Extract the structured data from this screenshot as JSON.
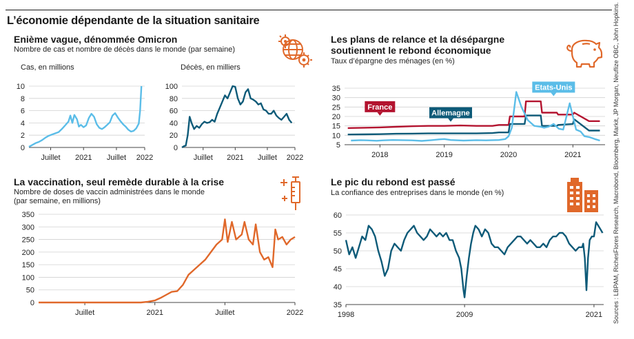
{
  "headline": "L’économie dépendante de la situation sanitaire",
  "sources": "Sources : LBPAM, RichesFlores Research, Macrobond, Bloomberg, Markit, JP Morgan, Neuflize OBC, John Hopkins.",
  "colors": {
    "light_blue": "#5bbde8",
    "dark_blue": "#0d5a78",
    "crimson": "#b3132f",
    "orange": "#e0682a",
    "grid": "#d0d0d0"
  },
  "icons": [
    "globe-virus-icon",
    "piggy-bank-icon",
    "vaccine-syringe-icon",
    "buildings-icon"
  ],
  "panels": {
    "omicron": {
      "title": "Enième vague, dénommée Omicron",
      "subtitle": "Nombre de cas et nombre de décès dans le monde (par semaine)"
    },
    "savings": {
      "title_line1": "Les plans de relance et la désépargne",
      "title_line2": "soutiennent le rebond économique",
      "subtitle": "Taux d’épargne des ménages (en %)"
    },
    "vaccination": {
      "title": "La vaccination, seul remède durable à la crise",
      "subtitle_line1": "Nombre de doses de vaccin administrées dans le monde",
      "subtitle_line2": "(par semaine, en millions)"
    },
    "confidence": {
      "title": "Le pic du rebond est passé",
      "subtitle": "La confiance des entreprises dans le monde (en %)"
    }
  },
  "chart_data": [
    {
      "id": "cases",
      "type": "line",
      "title": "Enième vague, dénommée Omicron",
      "ylabel": "Cas, en millions",
      "ylim": [
        0,
        10
      ],
      "yticks": [
        "0",
        "2",
        "4",
        "6",
        "8",
        "10"
      ],
      "xlim": [
        2020.17,
        2021.93
      ],
      "xticks": [
        {
          "x": 2020.5,
          "label": "Juillet"
        },
        {
          "x": 2021.0,
          "label": "2021"
        },
        {
          "x": 2021.5,
          "label": "Juillet"
        },
        {
          "x": 2021.93,
          "label": "2022"
        }
      ],
      "grid": true,
      "series": [
        {
          "color": "#5bbde8",
          "x": [
            2020.17,
            2020.22,
            2020.27,
            2020.32,
            2020.37,
            2020.42,
            2020.47,
            2020.52,
            2020.57,
            2020.62,
            2020.67,
            2020.72,
            2020.77,
            2020.8,
            2020.83,
            2020.86,
            2020.9,
            2020.93,
            2020.96,
            2021.0,
            2021.04,
            2021.08,
            2021.12,
            2021.16,
            2021.2,
            2021.24,
            2021.28,
            2021.32,
            2021.36,
            2021.4,
            2021.44,
            2021.48,
            2021.52,
            2021.56,
            2021.6,
            2021.64,
            2021.68,
            2021.72,
            2021.76,
            2021.8,
            2021.84,
            2021.86,
            2021.88
          ],
          "y": [
            0.1,
            0.4,
            0.7,
            0.9,
            1.2,
            1.6,
            1.9,
            2.1,
            2.3,
            2.5,
            3.0,
            3.6,
            4.2,
            5.2,
            4.0,
            5.3,
            4.6,
            3.4,
            3.7,
            3.3,
            3.6,
            4.8,
            5.5,
            5.0,
            3.8,
            3.2,
            3.0,
            3.3,
            3.7,
            4.1,
            5.2,
            5.6,
            4.9,
            4.3,
            3.8,
            3.4,
            2.9,
            2.6,
            2.7,
            3.1,
            3.9,
            6.0,
            10.0
          ]
        }
      ]
    },
    {
      "id": "deaths",
      "type": "line",
      "ylabel": "Décès, en milliers",
      "ylim": [
        0,
        100
      ],
      "yticks": [
        "0",
        "20",
        "40",
        "60",
        "80",
        "100"
      ],
      "xlim": [
        2020.17,
        2021.93
      ],
      "xticks": [
        {
          "x": 2020.5,
          "label": "Juillet"
        },
        {
          "x": 2021.0,
          "label": "2021"
        },
        {
          "x": 2021.5,
          "label": "Juillet"
        },
        {
          "x": 2021.93,
          "label": "2022"
        }
      ],
      "grid": true,
      "series": [
        {
          "color": "#0d5a78",
          "x": [
            2020.17,
            2020.2,
            2020.23,
            2020.26,
            2020.29,
            2020.32,
            2020.36,
            2020.4,
            2020.44,
            2020.48,
            2020.52,
            2020.56,
            2020.6,
            2020.64,
            2020.68,
            2020.72,
            2020.76,
            2020.8,
            2020.84,
            2020.88,
            2020.92,
            2020.96,
            2021.0,
            2021.04,
            2021.08,
            2021.12,
            2021.16,
            2021.2,
            2021.24,
            2021.28,
            2021.32,
            2021.36,
            2021.4,
            2021.44,
            2021.48,
            2021.52,
            2021.56,
            2021.6,
            2021.64,
            2021.68,
            2021.72,
            2021.76,
            2021.8,
            2021.84,
            2021.88
          ],
          "y": [
            0,
            2,
            3,
            20,
            50,
            40,
            30,
            35,
            32,
            38,
            42,
            40,
            41,
            45,
            42,
            55,
            65,
            75,
            85,
            80,
            90,
            100,
            99,
            80,
            70,
            75,
            90,
            95,
            80,
            78,
            75,
            70,
            72,
            62,
            60,
            55,
            55,
            60,
            52,
            48,
            45,
            50,
            55,
            45,
            40
          ]
        }
      ]
    },
    {
      "id": "savings",
      "type": "line",
      "title": "Les plans de relance et la désépargne soutiennent le rebond économique",
      "ylabel": "Taux d’épargne des ménages (en %)",
      "ylim": [
        5,
        35
      ],
      "yticks": [
        "5",
        "10",
        "15",
        "20",
        "25",
        "30",
        "35"
      ],
      "xlim": [
        2017.45,
        2021.5
      ],
      "xticks": [
        {
          "x": 2018,
          "label": "2018"
        },
        {
          "x": 2019,
          "label": "2019"
        },
        {
          "x": 2020,
          "label": "2020"
        },
        {
          "x": 2021,
          "label": "2021"
        }
      ],
      "grid": true,
      "series": [
        {
          "name": "France",
          "color": "#b3132f",
          "x": [
            2017.5,
            2017.75,
            2018.0,
            2018.25,
            2018.5,
            2018.75,
            2019.0,
            2019.25,
            2019.5,
            2019.75,
            2019.85,
            2020.0,
            2020.02,
            2020.25,
            2020.27,
            2020.5,
            2020.52,
            2020.75,
            2020.77,
            2021.0,
            2021.02,
            2021.25,
            2021.42
          ],
          "y": [
            13.8,
            14.0,
            14.2,
            14.5,
            14.8,
            15.0,
            15.0,
            15.2,
            15.0,
            15.0,
            15.5,
            15.5,
            20.0,
            20.0,
            28.0,
            28.0,
            22.0,
            22.0,
            21.0,
            21.0,
            22.0,
            17.5,
            17.5
          ]
        },
        {
          "name": "Allemagne",
          "color": "#0d5a78",
          "x": [
            2017.5,
            2017.75,
            2018.0,
            2018.25,
            2018.5,
            2018.75,
            2019.0,
            2019.25,
            2019.5,
            2019.75,
            2019.85,
            2020.0,
            2020.02,
            2020.25,
            2020.27,
            2020.5,
            2020.52,
            2020.75,
            2020.77,
            2021.0,
            2021.02,
            2021.25,
            2021.42
          ],
          "y": [
            10.4,
            10.5,
            10.6,
            10.8,
            10.9,
            11.0,
            11.0,
            11.0,
            11.0,
            11.2,
            11.5,
            11.5,
            16.0,
            16.0,
            20.5,
            20.5,
            15.0,
            15.0,
            15.5,
            16.0,
            18.5,
            12.5,
            12.5
          ]
        },
        {
          "name": "Etats-Unis",
          "color": "#5bbde8",
          "x": [
            2017.55,
            2017.7,
            2017.8,
            2017.95,
            2018.05,
            2018.2,
            2018.35,
            2018.5,
            2018.65,
            2018.8,
            2018.92,
            2019.0,
            2019.1,
            2019.3,
            2019.5,
            2019.65,
            2019.85,
            2019.95,
            2020.0,
            2020.05,
            2020.12,
            2020.2,
            2020.3,
            2020.4,
            2020.5,
            2020.55,
            2020.62,
            2020.7,
            2020.78,
            2020.85,
            2020.9,
            2020.95,
            2021.05,
            2021.12,
            2021.18,
            2021.26,
            2021.34,
            2021.42
          ],
          "y": [
            7.2,
            7.4,
            7.3,
            7.1,
            7.3,
            7.5,
            7.4,
            7.3,
            7.0,
            7.4,
            7.8,
            8.0,
            7.5,
            7.2,
            7.4,
            7.3,
            7.5,
            8.0,
            9.5,
            14.0,
            33.0,
            25.0,
            18.0,
            15.0,
            14.5,
            14.0,
            14.5,
            16.0,
            13.5,
            13.0,
            20.0,
            27.0,
            13.0,
            12.0,
            9.5,
            9.0,
            8.0,
            7.2
          ]
        }
      ]
    },
    {
      "id": "vaccination",
      "type": "line",
      "title": "La vaccination, seul remède durable à la crise",
      "ylabel": "Nombre de doses de vaccin administrées dans le monde (par semaine, en millions)",
      "ylim": [
        0,
        350
      ],
      "yticks": [
        "0",
        "50",
        "100",
        "150",
        "200",
        "250",
        "300",
        "350"
      ],
      "xlim": [
        2020.17,
        2022.0
      ],
      "xticks": [
        {
          "x": 2020.5,
          "label": "Juillet"
        },
        {
          "x": 2021.0,
          "label": "2021"
        },
        {
          "x": 2021.5,
          "label": "Juillet"
        },
        {
          "x": 2022.0,
          "label": "2022"
        }
      ],
      "grid": true,
      "series": [
        {
          "color": "#e0682a",
          "x": [
            2020.17,
            2020.5,
            2020.9,
            2020.95,
            2021.0,
            2021.04,
            2021.08,
            2021.12,
            2021.16,
            2021.2,
            2021.24,
            2021.28,
            2021.32,
            2021.36,
            2021.4,
            2021.44,
            2021.48,
            2021.5,
            2021.52,
            2021.55,
            2021.58,
            2021.62,
            2021.64,
            2021.67,
            2021.7,
            2021.72,
            2021.75,
            2021.78,
            2021.81,
            2021.84,
            2021.86,
            2021.88,
            2021.91,
            2021.94,
            2021.97,
            2022.0
          ],
          "y": [
            0,
            0,
            0,
            3,
            8,
            18,
            30,
            42,
            45,
            70,
            110,
            130,
            150,
            170,
            200,
            230,
            250,
            330,
            240,
            320,
            250,
            270,
            320,
            250,
            230,
            310,
            200,
            170,
            180,
            140,
            290,
            250,
            260,
            230,
            250,
            260
          ]
        }
      ]
    },
    {
      "id": "confidence",
      "type": "line",
      "title": "Le pic du rebond est passé",
      "ylabel": "La confiance des entreprises dans le monde (en %)",
      "ylim": [
        35,
        60
      ],
      "yticks": [
        "35",
        "40",
        "45",
        "50",
        "55",
        "60"
      ],
      "xlim": [
        1998,
        2021.9
      ],
      "xticks": [
        {
          "x": 1998,
          "label": "1998"
        },
        {
          "x": 2009,
          "label": "2009"
        },
        {
          "x": 2021,
          "label": "2021"
        }
      ],
      "grid": true,
      "series": [
        {
          "color": "#0d5a78",
          "x": [
            1998.0,
            1998.3,
            1998.6,
            1998.9,
            1999.2,
            1999.5,
            1999.8,
            2000.1,
            2000.4,
            2000.7,
            2001.0,
            2001.3,
            2001.6,
            2001.9,
            2002.2,
            2002.5,
            2002.8,
            2003.1,
            2003.4,
            2003.7,
            2004.0,
            2004.3,
            2004.6,
            2004.9,
            2005.2,
            2005.5,
            2005.8,
            2006.1,
            2006.4,
            2006.7,
            2007.0,
            2007.3,
            2007.6,
            2007.9,
            2008.2,
            2008.5,
            2008.7,
            2008.9,
            2009.0,
            2009.2,
            2009.4,
            2009.6,
            2009.8,
            2010.0,
            2010.3,
            2010.6,
            2010.9,
            2011.2,
            2011.5,
            2011.8,
            2012.1,
            2012.4,
            2012.7,
            2013.0,
            2013.3,
            2013.6,
            2013.9,
            2014.2,
            2014.5,
            2014.8,
            2015.1,
            2015.4,
            2015.7,
            2016.0,
            2016.3,
            2016.6,
            2016.9,
            2017.2,
            2017.5,
            2017.8,
            2018.1,
            2018.4,
            2018.7,
            2019.0,
            2019.3,
            2019.6,
            2019.9,
            2020.0,
            2020.15,
            2020.3,
            2020.45,
            2020.6,
            2020.8,
            2021.0,
            2021.2,
            2021.4,
            2021.6,
            2021.8
          ],
          "y": [
            53,
            49,
            51,
            48,
            51,
            54,
            53,
            57,
            56,
            54,
            50,
            47,
            43,
            45,
            50,
            52,
            51,
            50,
            53,
            55,
            56,
            57,
            55,
            54,
            53,
            54,
            56,
            55,
            54,
            55,
            54,
            55,
            53,
            53,
            50,
            48,
            45,
            39,
            37,
            43,
            48,
            52,
            55,
            57,
            56,
            54,
            56,
            55,
            52,
            51,
            51,
            50,
            49,
            51,
            52,
            53,
            54,
            54,
            53,
            52,
            53,
            52,
            51,
            51,
            52,
            51,
            53,
            54,
            54,
            55,
            55,
            54,
            52,
            51,
            50,
            51,
            51,
            52,
            48,
            39,
            48,
            53,
            54,
            54,
            58,
            57,
            56,
            55
          ]
        }
      ]
    }
  ]
}
